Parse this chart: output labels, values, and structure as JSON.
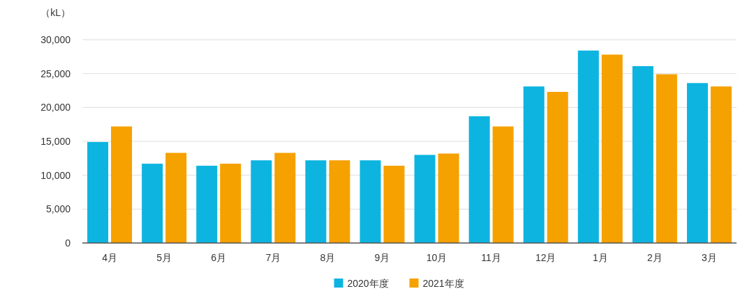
{
  "chart_data": {
    "type": "bar",
    "ylabel": "（kL）",
    "categories": [
      "4月",
      "5月",
      "6月",
      "7月",
      "8月",
      "9月",
      "10月",
      "11月",
      "12月",
      "1月",
      "2月",
      "3月"
    ],
    "series": [
      {
        "name": "2020年度",
        "color": "#0db4e0",
        "values": [
          14900,
          11700,
          11400,
          12200,
          12200,
          12200,
          13000,
          18700,
          23100,
          28400,
          26100,
          23600
        ]
      },
      {
        "name": "2021年度",
        "color": "#f5a100",
        "values": [
          17200,
          13300,
          11700,
          13300,
          12200,
          11400,
          13200,
          17200,
          22300,
          27800,
          24900,
          23100
        ]
      }
    ],
    "ylim": [
      0,
      30000
    ],
    "yticks": [
      {
        "value": 0,
        "label": "0"
      },
      {
        "value": 5000,
        "label": "5,000"
      },
      {
        "value": 10000,
        "label": "10,000"
      },
      {
        "value": 15000,
        "label": "15,000"
      },
      {
        "value": 20000,
        "label": "20,000"
      },
      {
        "value": 25000,
        "label": "25,000"
      },
      {
        "value": 30000,
        "label": "30,000"
      }
    ],
    "grid": "y",
    "legend": "bottom"
  }
}
